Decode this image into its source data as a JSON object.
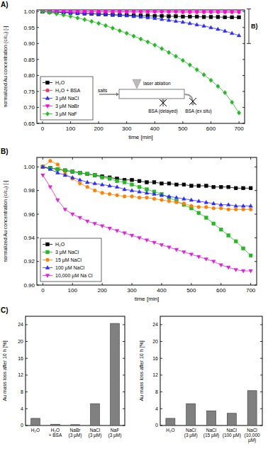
{
  "chart_data": [
    {
      "type": "line",
      "title": "A)",
      "x_label": "time [min]",
      "y_label": "normalized Au concentration (c/c₀) [-]",
      "x": [
        0,
        25,
        50,
        75,
        100,
        125,
        150,
        175,
        200,
        225,
        250,
        275,
        300,
        325,
        350,
        375,
        400,
        425,
        450,
        475,
        500,
        525,
        550,
        575,
        600,
        625,
        650,
        675,
        700
      ],
      "xlim": [
        -20,
        720
      ],
      "xticks": [
        0,
        100,
        200,
        300,
        400,
        500,
        600,
        700
      ],
      "ylim": [
        0.65,
        1.005
      ],
      "yticks": [
        0.65,
        {
          "value": 0.7,
          "label": "0.70"
        },
        0.75,
        {
          "value": 0.8,
          "label": "0.80"
        },
        0.85,
        {
          "value": 0.9,
          "label": "0.90"
        },
        0.95,
        {
          "value": 1,
          "label": "1.00"
        }
      ],
      "legend": "lower left",
      "annotations": [
        "B)",
        "salts",
        "laser ablation",
        "BSA (delayed)",
        "BSA (ex situ)"
      ],
      "series": [
        {
          "name": "H₂O",
          "color": "#000000",
          "marker": "square",
          "line_style": "solid",
          "values": [
            1.0,
            0.999,
            0.998,
            0.997,
            0.996,
            0.995,
            0.994,
            0.993,
            0.992,
            0.991,
            0.99,
            0.989,
            0.989,
            0.988,
            0.987,
            0.987,
            0.986,
            0.986,
            0.985,
            0.985,
            0.984,
            0.984,
            0.984,
            0.983,
            0.983,
            0.983,
            0.982,
            0.982,
            0.982
          ]
        },
        {
          "name": "H₂O + BSA",
          "color": "#ff3355",
          "marker": "circle",
          "line_style": "solid",
          "values": [
            1,
            1,
            1,
            1,
            0.999,
            0.999,
            0.999,
            0.999,
            0.999,
            0.999,
            0.999,
            0.999,
            0.999,
            0.999,
            0.999,
            0.999,
            0.999,
            0.999,
            0.999,
            0.999,
            0.998,
            0.998,
            0.998,
            0.998,
            0.998,
            0.998,
            0.998,
            0.998,
            0.998
          ]
        },
        {
          "name": "3 µM NaCl",
          "color": "#2b2bff",
          "marker": "triangle",
          "line_style": "solid",
          "values": [
            1.0,
            0.999,
            0.998,
            0.997,
            0.996,
            0.995,
            0.994,
            0.993,
            0.992,
            0.991,
            0.99,
            0.988,
            0.987,
            0.985,
            0.983,
            0.981,
            0.979,
            0.976,
            0.973,
            0.97,
            0.967,
            0.963,
            0.959,
            0.955,
            0.95,
            0.945,
            0.939,
            0.932,
            0.925
          ]
        },
        {
          "name": "3 µM NaBr",
          "color": "#ff00ff",
          "marker": "triangle-down",
          "line_style": "solid",
          "values": [
            1,
            1,
            1,
            1,
            1,
            1,
            1,
            1,
            1,
            1,
            1,
            1,
            0.999,
            0.999,
            0.999,
            0.999,
            0.999,
            0.999,
            0.999,
            0.999,
            0.999,
            0.999,
            0.999,
            0.999,
            0.999,
            0.999,
            0.999,
            0.999,
            0.999
          ]
        },
        {
          "name": "3 µM NaF",
          "color": "#22bb22",
          "marker": "diamond",
          "line_style": "solid",
          "values": [
            1.0,
            0.997,
            0.993,
            0.989,
            0.985,
            0.98,
            0.975,
            0.969,
            0.963,
            0.956,
            0.948,
            0.94,
            0.932,
            0.923,
            0.914,
            0.905,
            0.895,
            0.884,
            0.872,
            0.86,
            0.847,
            0.833,
            0.818,
            0.802,
            0.785,
            0.766,
            0.746,
            0.716,
            0.683
          ]
        }
      ]
    },
    {
      "type": "line",
      "title": "B)",
      "x_label": "time [min]",
      "y_label": "normalized Au concentration (c/c₀) [-]",
      "x": [
        0,
        25,
        50,
        75,
        100,
        125,
        150,
        175,
        200,
        225,
        250,
        275,
        300,
        325,
        350,
        375,
        400,
        425,
        450,
        475,
        500,
        525,
        550,
        575,
        600,
        625,
        650,
        675,
        700
      ],
      "xlim": [
        -20,
        720
      ],
      "xticks": [
        0,
        100,
        200,
        300,
        400,
        500,
        600,
        700
      ],
      "ylim": [
        0.9,
        1.008
      ],
      "yticks": [
        {
          "value": 0.9,
          "label": "0.90"
        },
        0.92,
        0.94,
        0.96,
        0.98,
        {
          "value": 1,
          "label": "1.00"
        }
      ],
      "legend": "lower left",
      "series": [
        {
          "name": "H₂O",
          "color": "#000000",
          "marker": "square",
          "line_style": "solid",
          "values": [
            1.0,
            0.999,
            0.998,
            0.997,
            0.996,
            0.995,
            0.994,
            0.993,
            0.992,
            0.991,
            0.99,
            0.989,
            0.989,
            0.988,
            0.987,
            0.987,
            0.986,
            0.986,
            0.985,
            0.985,
            0.984,
            0.984,
            0.984,
            0.983,
            0.983,
            0.983,
            0.982,
            0.982,
            0.982
          ]
        },
        {
          "name": "3 µM NaCl",
          "color": "#22bb22",
          "marker": "square",
          "line_style": "solid",
          "values": [
            1.0,
            0.999,
            0.998,
            0.997,
            0.996,
            0.995,
            0.994,
            0.993,
            0.991,
            0.99,
            0.988,
            0.987,
            0.985,
            0.983,
            0.981,
            0.979,
            0.977,
            0.974,
            0.971,
            0.968,
            0.965,
            0.961,
            0.957,
            0.952,
            0.947,
            0.942,
            0.937,
            0.931,
            0.925
          ]
        },
        {
          "name": "15 µM NaCl",
          "color": "#ff8000",
          "marker": "circle",
          "line_style": "solid",
          "values": [
            1.0,
            1.005,
            1.002,
            0.994,
            0.99,
            0.986,
            0.983,
            0.98,
            0.978,
            0.977,
            0.976,
            0.975,
            0.975,
            0.974,
            0.974,
            0.973,
            0.972,
            0.971,
            0.97,
            0.969,
            0.967,
            0.966,
            0.966,
            0.965,
            0.965,
            0.964,
            0.964,
            0.964,
            0.964
          ]
        },
        {
          "name": "100 µM NaCl",
          "color": "#2b2bff",
          "marker": "triangle",
          "line_style": "solid",
          "values": [
            1.0,
            0.998,
            0.995,
            0.993,
            0.991,
            0.989,
            0.987,
            0.986,
            0.985,
            0.984,
            0.983,
            0.981,
            0.98,
            0.979,
            0.978,
            0.977,
            0.976,
            0.975,
            0.974,
            0.973,
            0.972,
            0.971,
            0.97,
            0.969,
            0.968,
            0.968,
            0.967,
            0.967,
            0.967
          ]
        },
        {
          "name": "10,000 µM Na Cl",
          "color": "#dd22dd",
          "marker": "triangle-down",
          "line_style": "solid",
          "values": [
            0.993,
            0.983,
            0.972,
            0.964,
            0.96,
            0.957,
            0.954,
            0.952,
            0.95,
            0.948,
            0.946,
            0.944,
            0.942,
            0.94,
            0.938,
            0.936,
            0.934,
            0.932,
            0.93,
            0.928,
            0.926,
            0.924,
            0.922,
            0.92,
            0.917,
            0.915,
            0.913,
            0.912,
            0.912
          ]
        }
      ]
    },
    {
      "type": "bar",
      "title": "C)",
      "y_label": "Au mass loss after 10 h [%]",
      "categories": [
        "H₂O",
        "H₂O\n+ BSA",
        "NaBr\n(3 µM)",
        "NaCl\n(3 µM)",
        "NaF\n(3 µM)"
      ],
      "values": [
        1.7,
        0.3,
        0.2,
        5.2,
        24.3
      ],
      "color": "#808080",
      "ylim": [
        0,
        26
      ],
      "yticks": [
        0,
        4,
        8,
        12,
        16,
        20,
        24
      ]
    },
    {
      "type": "bar",
      "y_label": "Au mass loss after 10 h [%]",
      "categories": [
        "H₂O",
        "NaCl\n(3 µM)",
        "NaCl\n(15 µM)",
        "NaCl\n(100 µM)",
        "NaCl\n(10,000\nµM)"
      ],
      "values": [
        1.7,
        5.2,
        3.5,
        2.9,
        8.3
      ],
      "color": "#808080",
      "ylim": [
        0,
        26
      ],
      "yticks": [
        0,
        4,
        8,
        12,
        16,
        20,
        24
      ]
    }
  ]
}
